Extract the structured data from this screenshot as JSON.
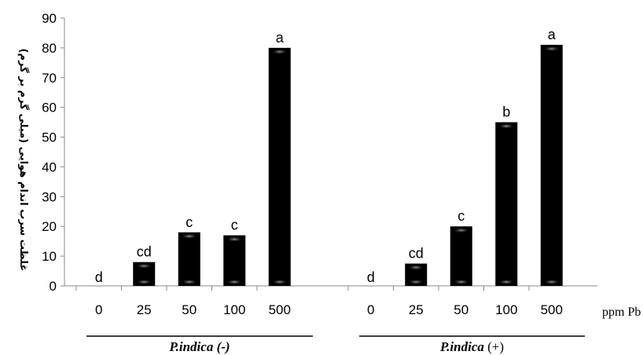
{
  "chart_data": {
    "type": "bar",
    "ylabel": "غلظت سرب اندام هوایی (میلی گرم بر گرم)",
    "x_unit": "ppm Pb",
    "ylim": [
      0,
      90
    ],
    "yticks": [
      0,
      10,
      20,
      30,
      40,
      50,
      60,
      70,
      80,
      90
    ],
    "grid": false,
    "bar_color": "#000000",
    "groups": [
      {
        "name_italic": "P.indica",
        "name_suffix": " (-)",
        "categories": [
          "0",
          "25",
          "50",
          "100",
          "500"
        ],
        "values": [
          0,
          8,
          18,
          17,
          80
        ],
        "letters": [
          "d",
          "cd",
          "c",
          "c",
          "a"
        ]
      },
      {
        "name_italic": "P.indica",
        "name_suffix": " (+)",
        "categories": [
          "0",
          "25",
          "50",
          "100",
          "500"
        ],
        "values": [
          0,
          7.5,
          20,
          55,
          81
        ],
        "letters": [
          "d",
          "cd",
          "c",
          "b",
          "a"
        ]
      }
    ]
  }
}
